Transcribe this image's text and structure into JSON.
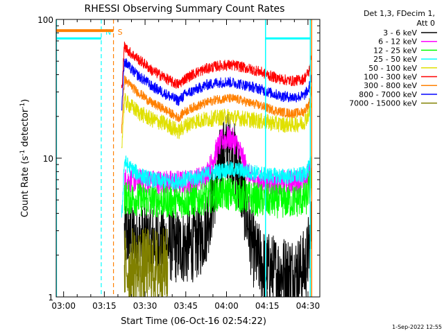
{
  "chart_data": {
    "type": "line",
    "title": "RHESSI Observing Summary Count Rates",
    "xlabel": "Start Time (06-Oct-16 02:54:22)",
    "ylabel_main": "Count Rate (s",
    "ylabel_sup1": "-1",
    "ylabel_mid": " detector",
    "ylabel_sup2": "-1",
    "ylabel_end": ")",
    "yscale": "log",
    "ylim": [
      1,
      100
    ],
    "xlim_minutes": [
      2.9,
      100.0
    ],
    "x_ticks": [
      {
        "label": "03:00",
        "minutes": 5.63
      },
      {
        "label": "03:15",
        "minutes": 20.63
      },
      {
        "label": "03:30",
        "minutes": 35.63
      },
      {
        "label": "03:45",
        "minutes": 50.63
      },
      {
        "label": "04:00",
        "minutes": 65.63
      },
      {
        "label": "04:15",
        "minutes": 80.63
      },
      {
        "label": "04:30",
        "minutes": 95.63
      }
    ],
    "y_ticks": [
      {
        "label": "1",
        "value": 1
      },
      {
        "label": "10",
        "value": 10
      },
      {
        "label": "100",
        "value": 100
      }
    ],
    "legend_header": [
      "Det 1,3, FDecim 1,",
      "Att 0"
    ],
    "series": [
      {
        "name": "3 - 6 keV",
        "color": "#000000",
        "x": [
          28,
          32,
          36,
          40,
          44,
          48,
          52,
          56,
          58,
          60,
          62,
          64,
          66,
          68,
          70,
          72,
          74,
          76,
          80,
          84,
          88,
          92,
          95,
          97
        ],
        "y": [
          2.8,
          2.6,
          2.5,
          2.5,
          2.4,
          2.3,
          2.3,
          2.6,
          3.2,
          4.5,
          7.0,
          10.5,
          12.0,
          10.5,
          8.0,
          5.0,
          3.0,
          2.0,
          1.6,
          1.5,
          1.5,
          1.5,
          1.7,
          3.0
        ]
      },
      {
        "name": "6 - 12 keV",
        "color": "#ff00ff",
        "x": [
          28,
          36,
          44,
          50,
          54,
          58,
          60,
          62,
          64,
          66,
          68,
          70,
          72,
          74,
          76,
          80,
          84,
          88,
          92,
          95,
          97
        ],
        "y": [
          7.0,
          6.8,
          6.7,
          6.7,
          6.9,
          7.5,
          9.0,
          11.5,
          13.5,
          14.0,
          13.5,
          12.0,
          9.5,
          7.5,
          6.8,
          6.6,
          6.6,
          6.7,
          6.8,
          7.0,
          9.0
        ]
      },
      {
        "name": "12 - 25 keV",
        "color": "#00ff00",
        "x": [
          28,
          36,
          44,
          50,
          54,
          58,
          62,
          66,
          70,
          74,
          78,
          84,
          90,
          95,
          97
        ],
        "y": [
          5.2,
          5.0,
          4.9,
          4.9,
          5.0,
          5.2,
          5.5,
          5.6,
          5.4,
          5.2,
          5.0,
          4.9,
          4.9,
          5.1,
          7.0
        ]
      },
      {
        "name": "25 - 50 keV",
        "color": "#00ffff",
        "x": [
          27,
          28,
          30,
          34,
          38,
          42,
          46,
          50,
          54,
          58,
          62,
          66,
          70,
          74,
          78,
          82,
          86,
          90,
          94,
          96,
          97
        ],
        "y": [
          3.5,
          9.5,
          8.5,
          7.5,
          7.0,
          6.8,
          6.8,
          7.0,
          7.2,
          7.6,
          8.0,
          8.3,
          8.2,
          8.0,
          7.7,
          7.5,
          7.4,
          7.4,
          7.6,
          8.5,
          9.5
        ]
      },
      {
        "name": "50 - 100 keV",
        "color": "#e0e000",
        "x": [
          27,
          28,
          30,
          34,
          38,
          42,
          46,
          48,
          50,
          54,
          58,
          62,
          66,
          70,
          74,
          78,
          82,
          86,
          90,
          94,
          96,
          97
        ],
        "y": [
          12.0,
          26.0,
          24.0,
          21.0,
          19.0,
          18.0,
          16.5,
          15.5,
          17.0,
          18.5,
          19.0,
          19.5,
          20.0,
          19.5,
          19.0,
          18.5,
          18.0,
          17.5,
          17.5,
          18.0,
          21.0,
          24.0
        ]
      },
      {
        "name": "100 - 300 keV",
        "color": "#ff0000",
        "x": [
          27,
          28,
          30,
          32,
          34,
          36,
          38,
          42,
          46,
          48,
          50,
          54,
          58,
          62,
          66,
          70,
          74,
          78,
          82,
          86,
          90,
          94,
          96,
          97
        ],
        "y": [
          30.0,
          64.0,
          58.0,
          54.0,
          50.0,
          47.0,
          43.0,
          39.0,
          35.0,
          34.0,
          37.0,
          41.0,
          44.0,
          46.0,
          47.0,
          46.0,
          44.0,
          42.0,
          39.0,
          37.0,
          36.0,
          37.0,
          42.0,
          56.0
        ]
      },
      {
        "name": "300 - 800 keV",
        "color": "#ff8000",
        "x": [
          27,
          28,
          30,
          32,
          34,
          36,
          38,
          42,
          46,
          48,
          50,
          54,
          58,
          62,
          66,
          70,
          74,
          78,
          82,
          86,
          90,
          94,
          96,
          97
        ],
        "y": [
          16.0,
          37.0,
          34.0,
          31.0,
          29.0,
          27.0,
          25.0,
          23.0,
          20.5,
          19.5,
          21.5,
          23.5,
          25.0,
          26.5,
          27.0,
          26.5,
          25.0,
          24.0,
          22.5,
          21.5,
          21.0,
          21.5,
          24.5,
          32.0
        ]
      },
      {
        "name": "800 - 7000 keV",
        "color": "#0000ff",
        "x": [
          27,
          28,
          30,
          32,
          34,
          36,
          38,
          42,
          46,
          48,
          50,
          54,
          58,
          62,
          66,
          70,
          74,
          78,
          82,
          86,
          90,
          94,
          96,
          97
        ],
        "y": [
          22.0,
          50.0,
          45.0,
          41.0,
          38.0,
          36.0,
          33.0,
          30.0,
          27.0,
          26.0,
          28.5,
          31.0,
          33.5,
          35.0,
          35.5,
          34.5,
          33.0,
          31.5,
          29.5,
          28.0,
          27.5,
          28.0,
          31.5,
          41.0
        ]
      },
      {
        "name": "7000 - 15000 keV",
        "color": "#808000",
        "x": [
          28,
          30,
          32,
          34,
          36,
          38,
          40,
          42,
          44
        ],
        "y": [
          1.6,
          1.6,
          1.6,
          1.6,
          1.6,
          1.6,
          1.6,
          1.6,
          1.6
        ]
      }
    ],
    "attenuator_line": {
      "color": "#ff8000",
      "x": [
        2.9,
        24.0
      ],
      "y": 83
    },
    "night_line": {
      "color": "#00ffff",
      "segments": [
        {
          "x": [
            2.9,
            19.5
          ],
          "y": 73
        },
        {
          "x": [
            80.0,
            96.5
          ],
          "y": 73
        }
      ]
    },
    "markers": [
      {
        "label": "N",
        "color": "#00ffff",
        "minutes": 19.5,
        "style": "dashed"
      },
      {
        "label": "S",
        "color": "#ff8000",
        "minutes": 24.0,
        "style": "dashed"
      }
    ],
    "vertical_lines": [
      {
        "color": "#00ffff",
        "minutes": 3.0
      },
      {
        "color": "#00ffff",
        "minutes": 80.0
      },
      {
        "color": "#00ffff",
        "minutes": 96.5
      },
      {
        "color": "#ff8000",
        "minutes": 97.0
      }
    ]
  },
  "footer_stamp": "1-Sep-2022 12:55"
}
